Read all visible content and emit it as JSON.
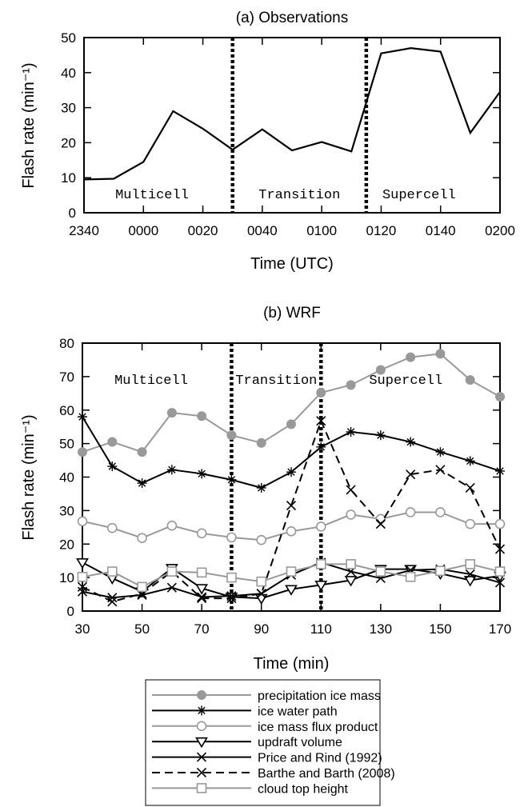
{
  "chart_data": [
    {
      "type": "line",
      "title": "(a) Observations",
      "xlabel": "Time (UTC)",
      "ylabel": "Flash rate (min⁻¹)",
      "xticks": [
        "2340",
        "0000",
        "0020",
        "0040",
        "0100",
        "0120",
        "0140",
        "0200"
      ],
      "xlim": [
        "2340",
        "0200"
      ],
      "ylim": [
        0,
        50
      ],
      "yticks": [
        0,
        10,
        20,
        30,
        40,
        50
      ],
      "x": [
        "2340",
        "2350",
        "0000",
        "0010",
        "0020",
        "0030",
        "0040",
        "0050",
        "0100",
        "0110",
        "0120",
        "0130",
        "0140",
        "0150",
        "0200"
      ],
      "series": [
        {
          "values": [
            9.5,
            9.7,
            14.5,
            29,
            24,
            18,
            23.8,
            17.8,
            20.2,
            17.5,
            45.5,
            47,
            46,
            22.8,
            34.5
          ],
          "color": "#000000",
          "style": "solid"
        }
      ],
      "dividers": [
        "0030",
        "0115"
      ],
      "regions": [
        "Multicell",
        "Transition",
        "Supercell"
      ],
      "grid": false
    },
    {
      "type": "line",
      "title": "(b) WRF",
      "xlabel": "Time (min)",
      "ylabel": "Flash rate (min⁻¹)",
      "xlim": [
        30,
        170
      ],
      "xticks": [
        30,
        50,
        70,
        90,
        110,
        130,
        150,
        170
      ],
      "ylim": [
        0,
        80
      ],
      "yticks": [
        0,
        10,
        20,
        30,
        40,
        50,
        60,
        70,
        80
      ],
      "x": [
        30,
        40,
        50,
        60,
        70,
        80,
        90,
        100,
        110,
        120,
        130,
        140,
        150,
        160,
        170
      ],
      "series": [
        {
          "name": "precipitation ice mass",
          "color": "#999999",
          "marker": "filled-circle",
          "style": "solid",
          "values": [
            47.5,
            50.5,
            47.5,
            59.2,
            58.2,
            52.5,
            50.2,
            55.8,
            65.2,
            67.5,
            72,
            75.8,
            76.8,
            69,
            64
          ]
        },
        {
          "name": "ice water path",
          "color": "#000000",
          "marker": "asterisk",
          "style": "solid",
          "values": [
            58,
            43.2,
            38.2,
            42.2,
            41,
            39.2,
            36.8,
            41.5,
            49,
            53.5,
            52.5,
            50.5,
            47.5,
            44.8,
            41.8
          ]
        },
        {
          "name": "ice mass flux product",
          "color": "#999999",
          "marker": "open-circle",
          "style": "solid",
          "values": [
            26.8,
            24.8,
            21.8,
            25.5,
            23.2,
            22,
            21.2,
            23.8,
            25.2,
            28.8,
            27.5,
            29.5,
            29.5,
            26,
            26
          ]
        },
        {
          "name": "updraft volume",
          "color": "#000000",
          "marker": "triangle-down",
          "style": "solid",
          "values": [
            14.5,
            9.8,
            5.8,
            12.8,
            6.8,
            4.2,
            3.8,
            6.5,
            7.8,
            9.2,
            12.5,
            12.5,
            11.2,
            9.2,
            10.5
          ]
        },
        {
          "name": "Price and Rind (1992)",
          "color": "#000000",
          "marker": "x",
          "style": "solid",
          "values": [
            5.8,
            4,
            4.8,
            7,
            4.2,
            4.5,
            5.2,
            10.8,
            14.5,
            11.8,
            9.8,
            12.2,
            12.5,
            11,
            8.5
          ]
        },
        {
          "name": "Barthe and Barth (2008)",
          "color": "#000000",
          "marker": "x",
          "style": "dashed",
          "values": [
            7.2,
            2.8,
            5.2,
            11.8,
            3.8,
            3.8,
            5.2,
            31.5,
            56.8,
            36.2,
            26,
            40.8,
            42.2,
            36.8,
            18.5
          ]
        },
        {
          "name": "cloud top height",
          "color": "#999999",
          "marker": "open-square",
          "style": "solid",
          "values": [
            10.2,
            11.8,
            7.2,
            11.8,
            11.5,
            10,
            8.8,
            11.8,
            14,
            14,
            11.8,
            10.2,
            12,
            14,
            11.8
          ]
        }
      ],
      "dividers": [
        80,
        110
      ],
      "regions": [
        "Multicell",
        "Transition",
        "Supercell"
      ],
      "grid": false,
      "legend": "bottom-center"
    }
  ]
}
